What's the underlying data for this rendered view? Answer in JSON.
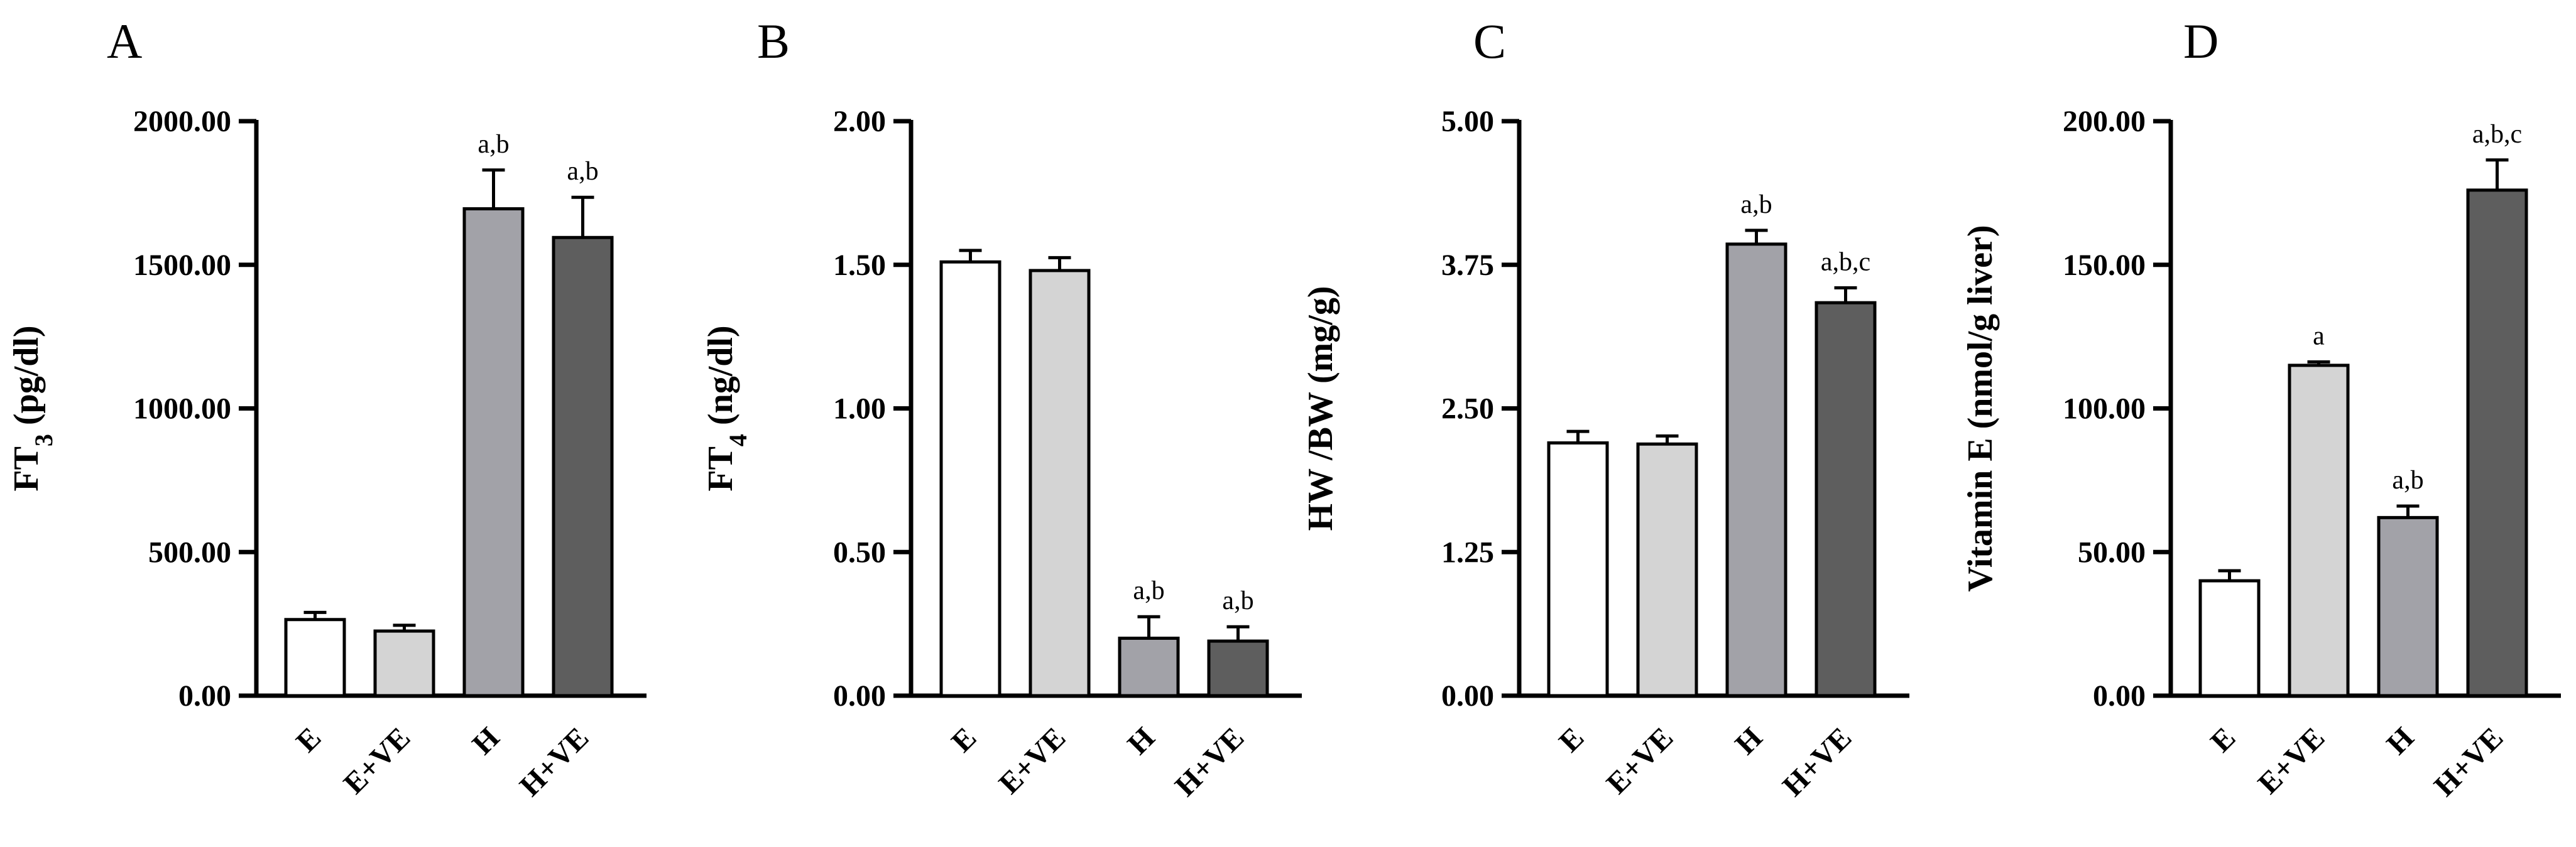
{
  "colors": {
    "E": "#ffffff",
    "E+VE": "#d4d4d4",
    "H": "#a2a2a8",
    "H+VE": "#5e5e5e",
    "stroke": "#000000"
  },
  "chart_data": [
    {
      "panel": "A",
      "type": "bar",
      "ylabel_main": "FT",
      "ylabel_sub": "3",
      "ylabel_rest": " (pg/dl)",
      "categories": [
        "E",
        "E+VE",
        "H",
        "H+VE"
      ],
      "values": [
        265,
        225,
        1695,
        1595
      ],
      "errors": [
        25,
        20,
        135,
        140
      ],
      "significance": [
        "",
        "",
        "a,b",
        "a,b"
      ],
      "ylim": [
        0,
        2000
      ],
      "yticks": [
        "0.00",
        "500.00",
        "1000.00",
        "1500.00",
        "2000.00"
      ]
    },
    {
      "panel": "B",
      "type": "bar",
      "ylabel_main": "FT",
      "ylabel_sub": "4",
      "ylabel_rest": " (ng/dl)",
      "categories": [
        "E",
        "E+VE",
        "H",
        "H+VE"
      ],
      "values": [
        1.51,
        1.48,
        0.2,
        0.19
      ],
      "errors": [
        0.04,
        0.045,
        0.075,
        0.05
      ],
      "significance": [
        "",
        "",
        "a,b",
        "a,b"
      ],
      "ylim": [
        0,
        2
      ],
      "yticks": [
        "0.00",
        "0.50",
        "1.00",
        "1.50",
        "2.00"
      ]
    },
    {
      "panel": "C",
      "type": "bar",
      "ylabel_main": "HW /BW (mg/g)",
      "ylabel_sub": "",
      "ylabel_rest": "",
      "categories": [
        "E",
        "E+VE",
        "H",
        "H+VE"
      ],
      "values": [
        2.2,
        2.19,
        3.93,
        3.42
      ],
      "errors": [
        0.1,
        0.07,
        0.12,
        0.13
      ],
      "significance": [
        "",
        "",
        "a,b",
        "a,b,c"
      ],
      "ylim": [
        0,
        5
      ],
      "yticks": [
        "0.00",
        "1.25",
        "2.50",
        "3.75",
        "5.00"
      ]
    },
    {
      "panel": "D",
      "type": "bar",
      "ylabel_main": "Vitamin E (nmol/g liver)",
      "ylabel_sub": "",
      "ylabel_rest": "",
      "categories": [
        "E",
        "E+VE",
        "H",
        "H+VE"
      ],
      "values": [
        40,
        115,
        62,
        176
      ],
      "errors": [
        3.5,
        1.2,
        4,
        10.5
      ],
      "significance": [
        "",
        "a",
        "a,b",
        "a,b,c"
      ],
      "ylim": [
        0,
        200
      ],
      "yticks": [
        "0.00",
        "50.00",
        "100.00",
        "150.00",
        "200.00"
      ]
    }
  ]
}
